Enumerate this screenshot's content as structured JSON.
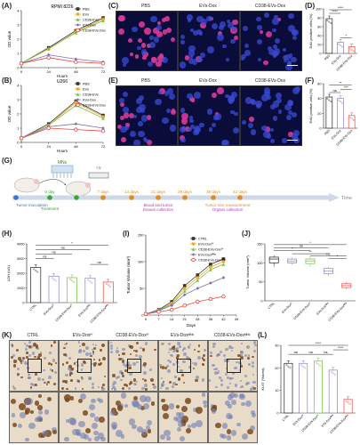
{
  "panel_labels": [
    "(A)",
    "(B)",
    "(C)",
    "(D)",
    "(E)",
    "(F)",
    "(G)",
    "(H)",
    "(I)",
    "(J)",
    "(K)",
    "(L)"
  ],
  "colors": {
    "pbs": "#333333",
    "evs": "#f5a623",
    "cd38_evs": "#7ac143",
    "evs_dox": "#7b6fb8",
    "cd38_evs_dox": "#e8453c",
    "nuclei": "#3a4bd6",
    "edu": "#d83a9a",
    "hollow_black": "#222222",
    "hollow_green": "#6fbf3f",
    "hollow_purple": "#8a7fbf",
    "hollow_red": "#e8453c"
  },
  "A": {
    "title": "RPMI 8226",
    "ylabel": "OD value",
    "xlabel": "Hours",
    "legend": [
      "PBS",
      "EVs",
      "CD38-EVs",
      "EVs-Dox",
      "CD38-EVs-Dox"
    ]
  },
  "B": {
    "title": "U266",
    "ylabel": "OD value",
    "xlabel": "Hours",
    "legend": [
      "PBS",
      "EVs",
      "CD38-EVs",
      "EVs-Dox",
      "CD38-EVs-Dox"
    ]
  },
  "C": {
    "labels": [
      "PBS",
      "EVs-Dox",
      "CD38-EVs-Dox"
    ]
  },
  "E": {
    "labels": [
      "PBS",
      "EVs-Dox",
      "CD38-EVs-Dox"
    ]
  },
  "D": {
    "ylabel": "EdU positive cells (%)",
    "stars_top": "****",
    "stars_mid": "****",
    "stars_low": "*"
  },
  "F": {
    "ylabel": "EdU positive cells (%)",
    "stars_top": "**",
    "stars_mid": "***",
    "ns": "ns"
  },
  "G": {
    "mns": "MNs",
    "iv": "i.v",
    "time": "Time",
    "events": [
      {
        "label": "Tumor inoculation",
        "color": "#3a6fd8"
      },
      {
        "label": "0 day",
        "color": "#3aa23a"
      },
      {
        "label": "Treatment",
        "color": "#3aa23a"
      },
      {
        "label": "7 days",
        "color": "#e08a1e"
      },
      {
        "label": "14 days",
        "color": "#e08a1e"
      },
      {
        "label": "21 days",
        "color": "#e08a1e"
      },
      {
        "label": "28 days",
        "color": "#e08a1e"
      },
      {
        "label": "35 days",
        "color": "#e08a1e"
      },
      {
        "label": "42 days",
        "color": "#e08a1e"
      },
      {
        "label": "Blood and tumor\ntissues collection",
        "color": "#b03ab0"
      },
      {
        "label": "Tumor size measurement",
        "color": "#e08a1e"
      },
      {
        "label": "Organs collection",
        "color": "#b03ab0"
      }
    ]
  },
  "H": {
    "ylabel": "LDH (U/L)",
    "ns": "ns",
    "star": "*",
    "groups": [
      "CTRL",
      "EVs-Doxᴵⱽ",
      "CD38-EVs-Doxᴵⱽ",
      "EVs-Doxᴹᴺˢ",
      "CD38-EVs-Doxᴹᴺˢ"
    ]
  },
  "I": {
    "ylabel": "Tumor Volume (mm³)",
    "xlabel": "Days",
    "legend": [
      "CTRL",
      "EVs-Doxᴵⱽ",
      "CD38-EVs-Doxᴵⱽ",
      "EVs-Doxᴹᴺˢ",
      "CD38-EVs-Doxᴹᴺˢ"
    ]
  },
  "J": {
    "ylabel": "Tumor Volume (mm³)",
    "groups": [
      "CTRL",
      "EVs-Doxᴵⱽ",
      "CD38-EVs-Doxᴵⱽ",
      "EVs-Doxᴹᴺˢ",
      "CD38-EVs-Doxᴹᴺˢ"
    ]
  },
  "K": {
    "labels": [
      "CTRL",
      "EVs-Doxᴵⱽ",
      "CD38-EVs-Doxᴵⱽ",
      "EVs-Doxᴹᴺˢ",
      "CD38-EVs-Doxᴹᴺˢ"
    ]
  },
  "L": {
    "ylabel": "Ki-67 (%Area)",
    "groups": [
      "CTRL",
      "EVs-Doxᴵⱽ",
      "CD38-EVs-Doxᴵⱽ",
      "EVs-Doxᴹᴺˢ",
      "CD38-EVs-Doxᴹᴺˢ"
    ]
  },
  "chart_data": [
    {
      "panel": "A",
      "type": "line",
      "title": "RPMI 8226",
      "xlabel": "Hours",
      "ylabel": "OD value",
      "x": [
        0,
        24,
        48,
        72
      ],
      "xlim": [
        0,
        72
      ],
      "ylim": [
        0,
        4
      ],
      "yticks": [
        0,
        1,
        2,
        3,
        4
      ],
      "xticks": [
        0,
        24,
        48,
        72
      ],
      "series": [
        {
          "name": "PBS",
          "values": [
            0.3,
            1.4,
            2.6,
            3.5
          ]
        },
        {
          "name": "EVs",
          "values": [
            0.3,
            1.3,
            2.5,
            3.4
          ]
        },
        {
          "name": "CD38-EVs",
          "values": [
            0.3,
            1.35,
            2.45,
            3.3
          ]
        },
        {
          "name": "EVs-Dox",
          "values": [
            0.3,
            0.9,
            0.6,
            0.4
          ]
        },
        {
          "name": "CD38-EVs-Dox",
          "values": [
            0.3,
            0.7,
            0.4,
            0.3
          ]
        }
      ]
    },
    {
      "panel": "B",
      "type": "line",
      "title": "U266",
      "xlabel": "Hours",
      "ylabel": "OD value",
      "x": [
        0,
        24,
        48,
        72
      ],
      "xlim": [
        0,
        72
      ],
      "ylim": [
        0,
        4
      ],
      "yticks": [
        0,
        1,
        2,
        3,
        4
      ],
      "xticks": [
        0,
        24,
        48,
        72
      ],
      "series": [
        {
          "name": "PBS",
          "values": [
            0.3,
            1.3,
            2.9,
            1.9
          ]
        },
        {
          "name": "EVs",
          "values": [
            0.3,
            1.2,
            2.8,
            1.8
          ]
        },
        {
          "name": "CD38-EVs",
          "values": [
            0.3,
            1.2,
            2.6,
            1.7
          ]
        },
        {
          "name": "EVs-Dox",
          "values": [
            0.3,
            1.1,
            1.3,
            1.0
          ]
        },
        {
          "name": "CD38-EVs-Dox",
          "values": [
            0.3,
            1.0,
            0.9,
            0.8
          ]
        }
      ]
    },
    {
      "panel": "D",
      "type": "bar",
      "ylabel": "EdU positive cells (%)",
      "categories": [
        "PBS",
        "EVs-Dox",
        "CD38-EVs-Dox"
      ],
      "values": [
        78,
        25,
        15
      ],
      "ylim": [
        0,
        100
      ],
      "yticks": [
        0,
        20,
        40,
        60,
        80,
        100
      ]
    },
    {
      "panel": "F",
      "type": "bar",
      "ylabel": "EdU positive cells (%)",
      "categories": [
        "PBS",
        "EVs-Dox",
        "CD38-EVs-Dox"
      ],
      "values": [
        42,
        40,
        17
      ],
      "ylim": [
        0,
        60
      ],
      "yticks": [
        0,
        20,
        40,
        60
      ]
    },
    {
      "panel": "H",
      "type": "bar",
      "ylabel": "LDH (U/L)",
      "categories": [
        "CTRL",
        "EVs-Doxᴵⱽ",
        "CD38-EVs-Doxᴵⱽ",
        "EVs-Doxᴹᴺˢ",
        "CD38-EVs-Doxᴹᴺˢ"
      ],
      "values": [
        2400,
        1800,
        1700,
        1650,
        1400
      ],
      "ylim": [
        0,
        4000
      ],
      "yticks": [
        0,
        1000,
        2000,
        3000,
        4000
      ]
    },
    {
      "panel": "I",
      "type": "line",
      "xlabel": "Days",
      "ylabel": "Tumor Volume (mm³)",
      "x": [
        0,
        7,
        14,
        21,
        28,
        35,
        42
      ],
      "xlim": [
        0,
        49
      ],
      "ylim": [
        0,
        150
      ],
      "yticks": [
        0,
        50,
        100,
        150
      ],
      "xticks": [
        0,
        7,
        14,
        21,
        28,
        35,
        42,
        49
      ],
      "series": [
        {
          "name": "CTRL",
          "values": [
            2,
            10,
            25,
            55,
            75,
            95,
            105
          ]
        },
        {
          "name": "EVs-Doxᴵⱽ",
          "values": [
            2,
            9,
            22,
            50,
            70,
            90,
            100
          ]
        },
        {
          "name": "CD38-EVs-Doxᴵⱽ",
          "values": [
            2,
            9,
            20,
            45,
            65,
            85,
            95
          ]
        },
        {
          "name": "EVs-Doxᴹᴺˢ",
          "values": [
            2,
            8,
            18,
            38,
            50,
            60,
            70
          ]
        },
        {
          "name": "CD38-EVs-Doxᴹᴺˢ",
          "values": [
            2,
            6,
            10,
            18,
            25,
            30,
            35
          ]
        }
      ]
    },
    {
      "panel": "J",
      "type": "box",
      "ylabel": "Tumor Volume (mm³)",
      "categories": [
        "CTRL",
        "EVs-Doxᴵⱽ",
        "CD38-EVs-Doxᴵⱽ",
        "EVs-Doxᴹᴺˢ",
        "CD38-EVs-Doxᴹᴺˢ"
      ],
      "boxes": [
        [
          90,
          100,
          110,
          115,
          120
        ],
        [
          95,
          100,
          105,
          110,
          115
        ],
        [
          90,
          98,
          105,
          110,
          118
        ],
        [
          65,
          72,
          78,
          85,
          90
        ],
        [
          30,
          35,
          40,
          45,
          50
        ]
      ],
      "ylim": [
        0,
        150
      ],
      "yticks": [
        0,
        50,
        100,
        150
      ]
    },
    {
      "panel": "L",
      "type": "bar",
      "ylabel": "Ki-67 (%Area)",
      "categories": [
        "CTRL",
        "EVs-Doxᴵⱽ",
        "CD38-EVs-Doxᴵⱽ",
        "EVs-Doxᴹᴺˢ",
        "CD38-EVs-Doxᴹᴺˢ"
      ],
      "values": [
        22,
        22,
        23,
        19,
        6
      ],
      "ylim": [
        0,
        30
      ],
      "yticks": [
        0,
        10,
        20,
        30
      ]
    }
  ]
}
